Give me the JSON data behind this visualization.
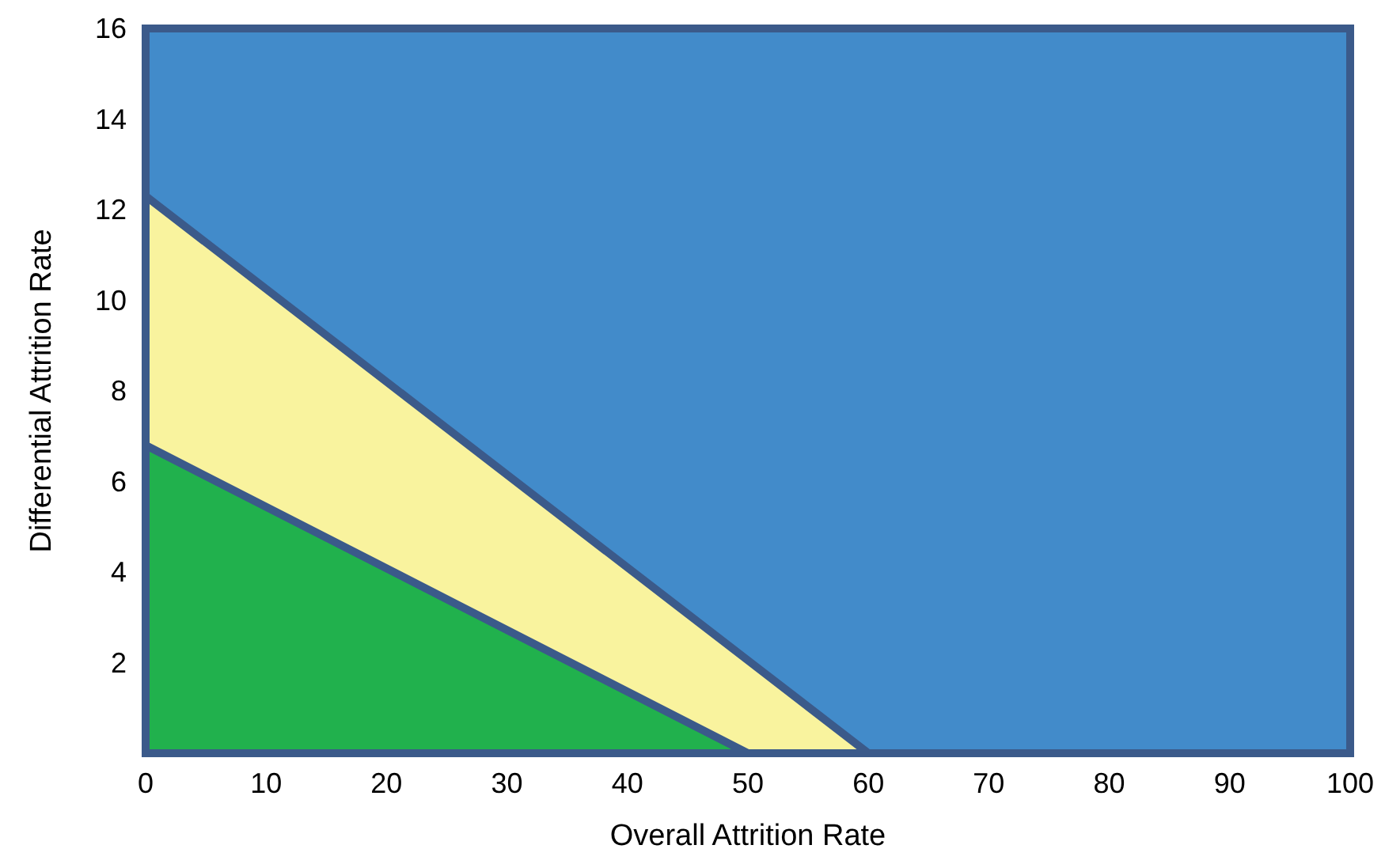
{
  "chart_data": {
    "type": "area",
    "stacked": true,
    "xlabel": "Overall Attrition Rate",
    "ylabel": "Differential Attrition Rate",
    "xlim": [
      0,
      100
    ],
    "xticks": [
      0,
      10,
      20,
      30,
      40,
      50,
      60,
      70,
      80,
      90,
      100
    ],
    "ylim": [
      0,
      16
    ],
    "yticks": [
      2,
      4,
      6,
      8,
      10,
      12,
      14,
      16
    ],
    "line_style": "solid",
    "x": [
      0,
      50,
      60,
      100
    ],
    "series": [
      {
        "color": "#21b14d",
        "values": [
          6.8,
          0,
          0,
          0
        ]
      },
      {
        "color": "#f9f39e",
        "values": [
          5.5,
          2.05,
          0,
          0
        ]
      },
      {
        "color": "#428bca",
        "values": [
          3.7,
          13.95,
          16,
          16
        ]
      }
    ]
  }
}
